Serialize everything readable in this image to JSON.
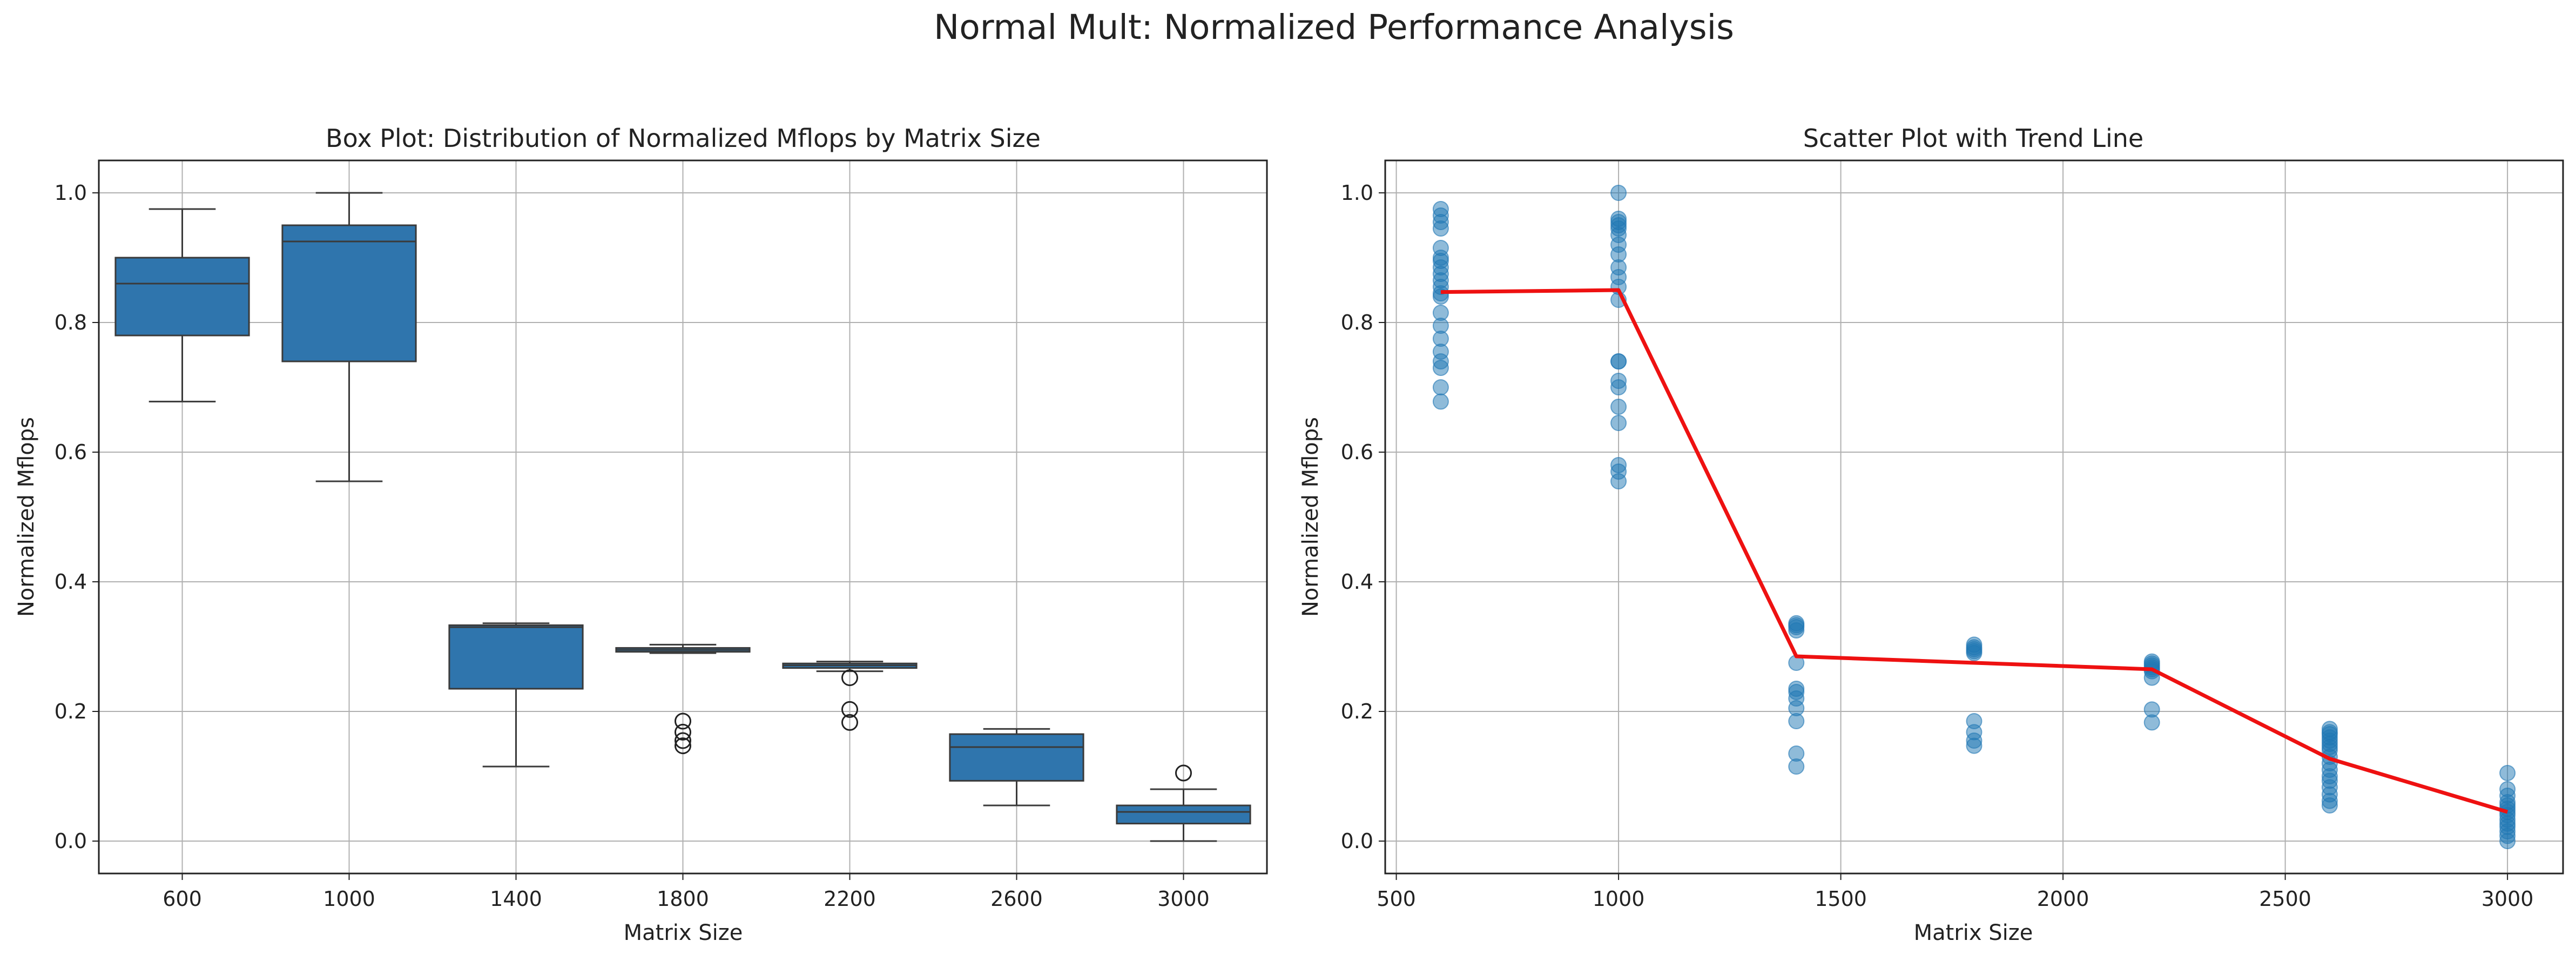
{
  "figure": {
    "title": "Normal Mult: Normalized Performance Analysis"
  },
  "colors": {
    "box_fill": "#2f75ad",
    "box_edge": "#3a3a3a",
    "scatter_fill": "#1f77b4",
    "trend": "#ee1111",
    "grid": "#b0b0b0",
    "axes": "#222222"
  },
  "chart_data": [
    {
      "type": "box",
      "title": "Box Plot: Distribution of Normalized Mflops by Matrix Size",
      "xlabel": "Matrix Size",
      "ylabel": "Normalized Mflops",
      "ylim": [
        -0.05,
        1.05
      ],
      "yticks": [
        0.0,
        0.2,
        0.4,
        0.6,
        0.8,
        1.0
      ],
      "ytick_labels": [
        "0.0",
        "0.2",
        "0.4",
        "0.6",
        "0.8",
        "1.0"
      ],
      "grid": true,
      "categories": [
        "600",
        "1000",
        "1400",
        "1800",
        "2200",
        "2600",
        "3000"
      ],
      "boxes": [
        {
          "whisker_low": 0.678,
          "q1": 0.78,
          "median": 0.86,
          "q3": 0.9,
          "whisker_high": 0.975,
          "outliers": []
        },
        {
          "whisker_low": 0.555,
          "q1": 0.74,
          "median": 0.925,
          "q3": 0.95,
          "whisker_high": 1.0,
          "outliers": []
        },
        {
          "whisker_low": 0.115,
          "q1": 0.235,
          "median": 0.33,
          "q3": 0.333,
          "whisker_high": 0.336,
          "outliers": []
        },
        {
          "whisker_low": 0.29,
          "q1": 0.292,
          "median": 0.295,
          "q3": 0.298,
          "whisker_high": 0.303,
          "outliers": [
            0.185,
            0.168,
            0.155,
            0.147
          ]
        },
        {
          "whisker_low": 0.262,
          "q1": 0.267,
          "median": 0.271,
          "q3": 0.274,
          "whisker_high": 0.277,
          "outliers": [
            0.252,
            0.203,
            0.183
          ]
        },
        {
          "whisker_low": 0.055,
          "q1": 0.093,
          "median": 0.145,
          "q3": 0.165,
          "whisker_high": 0.173,
          "outliers": []
        },
        {
          "whisker_low": 0.0,
          "q1": 0.027,
          "median": 0.045,
          "q3": 0.055,
          "whisker_high": 0.08,
          "outliers": [
            0.105
          ]
        }
      ]
    },
    {
      "type": "scatter",
      "title": "Scatter Plot with Trend Line",
      "xlabel": "Matrix Size",
      "ylabel": "Normalized Mflops",
      "xlim": [
        475,
        3125
      ],
      "ylim": [
        -0.05,
        1.05
      ],
      "xticks": [
        500,
        1000,
        1500,
        2000,
        2500,
        3000
      ],
      "xtick_labels": [
        "500",
        "1000",
        "1500",
        "2000",
        "2500",
        "3000"
      ],
      "yticks": [
        0.0,
        0.2,
        0.4,
        0.6,
        0.8,
        1.0
      ],
      "ytick_labels": [
        "0.0",
        "0.2",
        "0.4",
        "0.6",
        "0.8",
        "1.0"
      ],
      "grid": true,
      "points": [
        {
          "x": 600,
          "y": [
            0.678,
            0.7,
            0.73,
            0.74,
            0.755,
            0.775,
            0.795,
            0.815,
            0.84,
            0.845,
            0.855,
            0.865,
            0.875,
            0.885,
            0.895,
            0.9,
            0.915,
            0.945,
            0.955,
            0.965,
            0.975
          ]
        },
        {
          "x": 1000,
          "y": [
            0.555,
            0.57,
            0.58,
            0.645,
            0.67,
            0.7,
            0.71,
            0.74,
            0.74,
            0.835,
            0.855,
            0.87,
            0.885,
            0.905,
            0.92,
            0.935,
            0.945,
            0.95,
            0.955,
            0.96,
            1.0
          ]
        },
        {
          "x": 1400,
          "y": [
            0.115,
            0.135,
            0.185,
            0.205,
            0.22,
            0.23,
            0.235,
            0.275,
            0.325,
            0.33,
            0.333,
            0.336
          ]
        },
        {
          "x": 1800,
          "y": [
            0.147,
            0.155,
            0.168,
            0.185,
            0.29,
            0.293,
            0.296,
            0.299,
            0.303
          ]
        },
        {
          "x": 2200,
          "y": [
            0.183,
            0.203,
            0.252,
            0.262,
            0.265,
            0.268,
            0.271,
            0.274,
            0.277
          ]
        },
        {
          "x": 2600,
          "y": [
            0.055,
            0.062,
            0.072,
            0.083,
            0.093,
            0.1,
            0.11,
            0.12,
            0.13,
            0.14,
            0.145,
            0.15,
            0.155,
            0.16,
            0.165,
            0.168,
            0.173
          ]
        },
        {
          "x": 3000,
          "y": [
            0.0,
            0.008,
            0.015,
            0.022,
            0.027,
            0.033,
            0.04,
            0.045,
            0.05,
            0.055,
            0.06,
            0.07,
            0.08,
            0.105
          ]
        }
      ],
      "trend": {
        "x": [
          600,
          1000,
          1400,
          1800,
          2200,
          2600,
          3000
        ],
        "y": [
          0.847,
          0.85,
          0.285,
          0.275,
          0.265,
          0.127,
          0.045
        ]
      }
    }
  ]
}
